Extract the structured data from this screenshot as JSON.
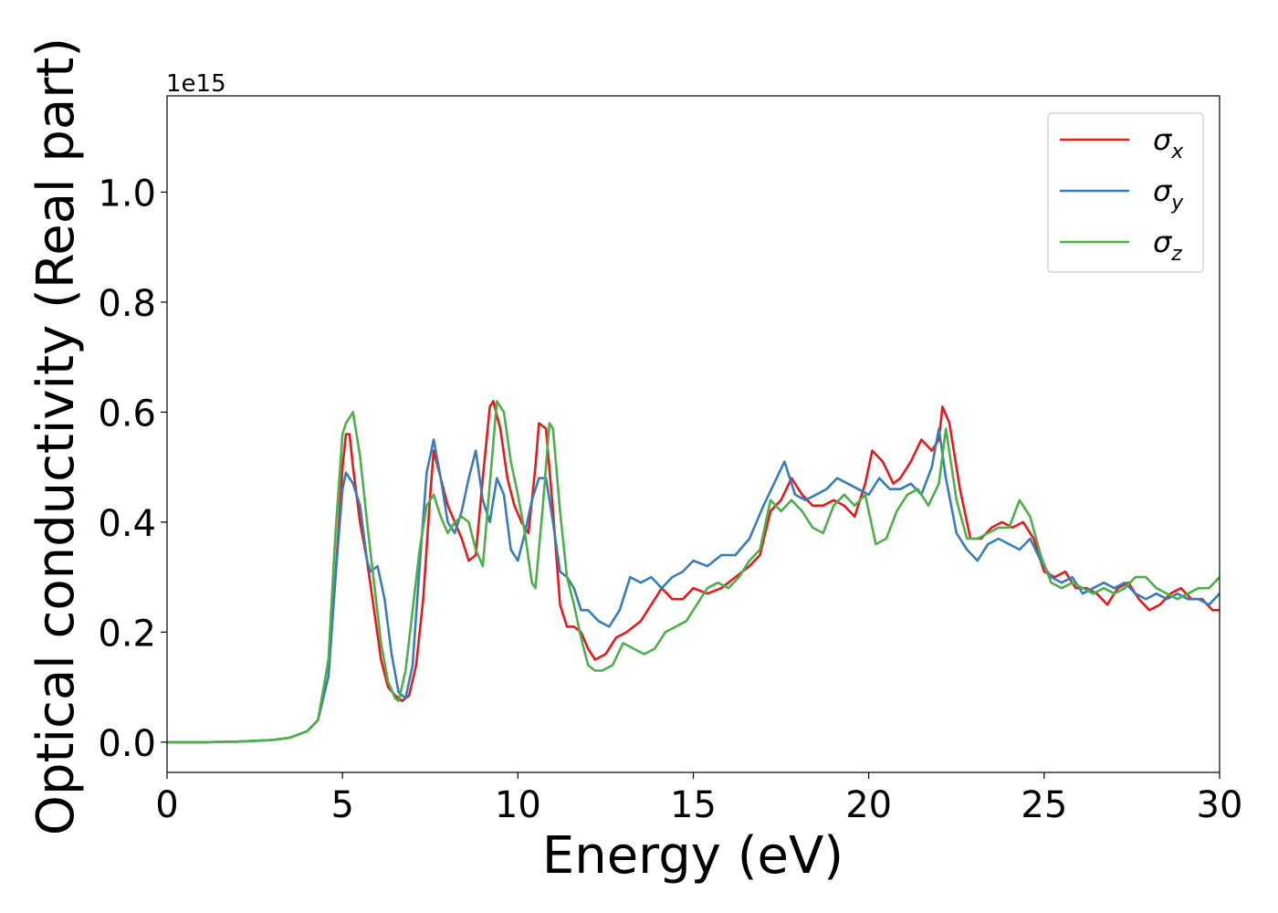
{
  "chart_data": {
    "type": "line",
    "xlabel": "Energy (eV)",
    "ylabel": "Optical conductivity (Real part)",
    "offset_label": "1e15",
    "xlim": [
      0,
      30
    ],
    "ylim": [
      -0.055,
      1.175
    ],
    "xticks": [
      0,
      5,
      10,
      15,
      20,
      25,
      30
    ],
    "xtick_labels": [
      "0",
      "5",
      "10",
      "15",
      "20",
      "25",
      "30"
    ],
    "yticks": [
      0.0,
      0.2,
      0.4,
      0.6,
      0.8,
      1.0
    ],
    "ytick_labels": [
      "0.0",
      "0.2",
      "0.4",
      "0.6",
      "0.8",
      "1.0"
    ],
    "grid": false,
    "legend_position": "top-right",
    "series": [
      {
        "name": "σx",
        "name_base": "σ",
        "name_sub": "x",
        "color": "#e41a1c",
        "x": [
          0,
          1,
          2,
          3,
          3.5,
          4,
          4.3,
          4.6,
          4.8,
          5.0,
          5.1,
          5.2,
          5.3,
          5.5,
          5.7,
          5.9,
          6.1,
          6.3,
          6.5,
          6.7,
          6.9,
          7.1,
          7.3,
          7.5,
          7.6,
          7.8,
          8.0,
          8.2,
          8.4,
          8.6,
          8.8,
          9.0,
          9.2,
          9.3,
          9.5,
          9.7,
          9.9,
          10.1,
          10.3,
          10.5,
          10.6,
          10.8,
          11.0,
          11.2,
          11.4,
          11.6,
          11.8,
          12.0,
          12.2,
          12.5,
          12.8,
          13.1,
          13.5,
          13.8,
          14.1,
          14.4,
          14.7,
          15.0,
          15.4,
          15.8,
          16.2,
          16.6,
          16.9,
          17.2,
          17.5,
          17.8,
          18.1,
          18.4,
          18.7,
          19.0,
          19.3,
          19.6,
          19.9,
          20.1,
          20.4,
          20.7,
          20.9,
          21.2,
          21.5,
          21.8,
          22.0,
          22.1,
          22.3,
          22.6,
          22.9,
          23.2,
          23.5,
          23.8,
          24.1,
          24.4,
          24.7,
          25.0,
          25.3,
          25.6,
          25.9,
          26.2,
          26.5,
          26.8,
          27.1,
          27.4,
          27.7,
          28.0,
          28.3,
          28.6,
          28.9,
          29.2,
          29.5,
          29.8,
          30.0
        ],
        "y": [
          0.0,
          0.0,
          0.001,
          0.004,
          0.008,
          0.02,
          0.04,
          0.12,
          0.3,
          0.5,
          0.56,
          0.56,
          0.5,
          0.4,
          0.33,
          0.24,
          0.15,
          0.1,
          0.085,
          0.075,
          0.085,
          0.14,
          0.26,
          0.45,
          0.53,
          0.48,
          0.43,
          0.4,
          0.37,
          0.33,
          0.34,
          0.48,
          0.61,
          0.62,
          0.57,
          0.48,
          0.43,
          0.4,
          0.38,
          0.5,
          0.58,
          0.57,
          0.42,
          0.25,
          0.21,
          0.21,
          0.2,
          0.17,
          0.15,
          0.16,
          0.19,
          0.2,
          0.22,
          0.25,
          0.28,
          0.26,
          0.26,
          0.28,
          0.27,
          0.28,
          0.3,
          0.32,
          0.34,
          0.42,
          0.44,
          0.48,
          0.45,
          0.43,
          0.43,
          0.44,
          0.43,
          0.41,
          0.47,
          0.53,
          0.51,
          0.47,
          0.48,
          0.51,
          0.55,
          0.53,
          0.55,
          0.61,
          0.58,
          0.46,
          0.37,
          0.37,
          0.39,
          0.4,
          0.39,
          0.4,
          0.37,
          0.31,
          0.3,
          0.31,
          0.28,
          0.28,
          0.27,
          0.25,
          0.28,
          0.29,
          0.26,
          0.24,
          0.25,
          0.27,
          0.28,
          0.26,
          0.26,
          0.24,
          0.24
        ]
      },
      {
        "name": "σy",
        "name_base": "σ",
        "name_sub": "y",
        "color": "#377eb8",
        "x": [
          0,
          1,
          2,
          3,
          3.5,
          4,
          4.3,
          4.6,
          4.8,
          5.0,
          5.1,
          5.3,
          5.5,
          5.7,
          5.8,
          6.0,
          6.2,
          6.4,
          6.6,
          6.8,
          7.0,
          7.2,
          7.4,
          7.6,
          7.8,
          8.0,
          8.2,
          8.4,
          8.6,
          8.8,
          9.0,
          9.2,
          9.4,
          9.6,
          9.8,
          10.0,
          10.2,
          10.4,
          10.6,
          10.8,
          11.0,
          11.2,
          11.4,
          11.6,
          11.8,
          12.0,
          12.3,
          12.6,
          12.9,
          13.2,
          13.5,
          13.8,
          14.1,
          14.4,
          14.7,
          15.0,
          15.4,
          15.8,
          16.2,
          16.6,
          17.0,
          17.3,
          17.6,
          17.9,
          18.2,
          18.5,
          18.8,
          19.1,
          19.4,
          19.7,
          20.0,
          20.3,
          20.6,
          20.9,
          21.2,
          21.5,
          21.8,
          22.0,
          22.2,
          22.5,
          22.8,
          23.1,
          23.4,
          23.7,
          24.0,
          24.3,
          24.6,
          24.9,
          25.2,
          25.5,
          25.8,
          26.1,
          26.4,
          26.7,
          27.0,
          27.3,
          27.6,
          27.9,
          28.2,
          28.5,
          28.8,
          29.1,
          29.4,
          29.7,
          30.0
        ],
        "y": [
          0.0,
          0.0,
          0.001,
          0.004,
          0.008,
          0.02,
          0.04,
          0.12,
          0.3,
          0.46,
          0.49,
          0.47,
          0.43,
          0.33,
          0.31,
          0.32,
          0.26,
          0.16,
          0.09,
          0.08,
          0.14,
          0.32,
          0.49,
          0.55,
          0.48,
          0.4,
          0.38,
          0.42,
          0.48,
          0.53,
          0.44,
          0.4,
          0.48,
          0.45,
          0.35,
          0.33,
          0.38,
          0.44,
          0.48,
          0.48,
          0.4,
          0.31,
          0.3,
          0.28,
          0.24,
          0.24,
          0.22,
          0.21,
          0.24,
          0.3,
          0.29,
          0.3,
          0.28,
          0.3,
          0.31,
          0.33,
          0.32,
          0.34,
          0.34,
          0.37,
          0.43,
          0.47,
          0.51,
          0.45,
          0.44,
          0.45,
          0.46,
          0.48,
          0.47,
          0.46,
          0.45,
          0.48,
          0.46,
          0.46,
          0.47,
          0.45,
          0.5,
          0.57,
          0.48,
          0.38,
          0.35,
          0.33,
          0.36,
          0.37,
          0.36,
          0.35,
          0.37,
          0.33,
          0.3,
          0.29,
          0.3,
          0.27,
          0.28,
          0.29,
          0.28,
          0.29,
          0.27,
          0.26,
          0.27,
          0.26,
          0.27,
          0.26,
          0.26,
          0.25,
          0.27
        ]
      },
      {
        "name": "σz",
        "name_base": "σ",
        "name_sub": "z",
        "color": "#4daf4a",
        "x": [
          0,
          1,
          2,
          3,
          3.5,
          4,
          4.3,
          4.6,
          4.8,
          5.0,
          5.1,
          5.2,
          5.3,
          5.5,
          5.7,
          5.9,
          6.1,
          6.3,
          6.5,
          6.6,
          6.8,
          7.0,
          7.2,
          7.4,
          7.6,
          7.8,
          8.0,
          8.2,
          8.4,
          8.6,
          8.8,
          9.0,
          9.2,
          9.4,
          9.6,
          9.8,
          10.0,
          10.2,
          10.4,
          10.5,
          10.7,
          10.9,
          11.0,
          11.2,
          11.4,
          11.6,
          11.8,
          12.0,
          12.2,
          12.4,
          12.7,
          13.0,
          13.3,
          13.6,
          13.9,
          14.2,
          14.5,
          14.8,
          15.1,
          15.4,
          15.7,
          16.0,
          16.3,
          16.6,
          16.9,
          17.2,
          17.5,
          17.8,
          18.1,
          18.4,
          18.7,
          19.0,
          19.3,
          19.6,
          19.9,
          20.2,
          20.5,
          20.8,
          21.1,
          21.4,
          21.7,
          22.0,
          22.2,
          22.5,
          22.8,
          23.1,
          23.4,
          23.7,
          24.0,
          24.3,
          24.6,
          24.9,
          25.2,
          25.5,
          25.8,
          26.1,
          26.4,
          26.7,
          27.0,
          27.3,
          27.6,
          27.9,
          28.2,
          28.5,
          28.8,
          29.1,
          29.4,
          29.7,
          30.0
        ],
        "y": [
          0.0,
          0.0,
          0.001,
          0.004,
          0.008,
          0.02,
          0.04,
          0.15,
          0.38,
          0.56,
          0.58,
          0.59,
          0.6,
          0.52,
          0.4,
          0.29,
          0.18,
          0.11,
          0.08,
          0.075,
          0.13,
          0.24,
          0.35,
          0.43,
          0.45,
          0.41,
          0.38,
          0.4,
          0.41,
          0.4,
          0.35,
          0.32,
          0.47,
          0.62,
          0.6,
          0.51,
          0.45,
          0.38,
          0.29,
          0.28,
          0.42,
          0.58,
          0.57,
          0.42,
          0.3,
          0.25,
          0.19,
          0.14,
          0.13,
          0.13,
          0.14,
          0.18,
          0.17,
          0.16,
          0.17,
          0.2,
          0.21,
          0.22,
          0.25,
          0.28,
          0.29,
          0.28,
          0.3,
          0.33,
          0.35,
          0.44,
          0.42,
          0.44,
          0.42,
          0.39,
          0.38,
          0.43,
          0.45,
          0.43,
          0.45,
          0.36,
          0.37,
          0.42,
          0.45,
          0.46,
          0.43,
          0.47,
          0.57,
          0.44,
          0.37,
          0.37,
          0.38,
          0.39,
          0.39,
          0.44,
          0.41,
          0.34,
          0.29,
          0.28,
          0.29,
          0.28,
          0.27,
          0.28,
          0.27,
          0.28,
          0.3,
          0.3,
          0.28,
          0.27,
          0.26,
          0.27,
          0.28,
          0.28,
          0.3
        ]
      }
    ]
  }
}
